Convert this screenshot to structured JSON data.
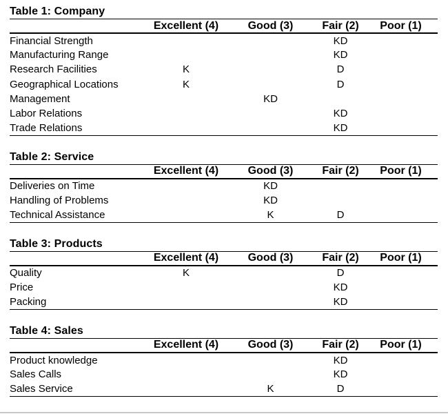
{
  "columns": [
    "Excellent (4)",
    "Good (3)",
    "Fair (2)",
    "Poor (1)"
  ],
  "tables": [
    {
      "title": "Table 1: Company",
      "rows": [
        {
          "label": "Financial Strength",
          "cells": [
            "",
            "",
            "KD",
            ""
          ]
        },
        {
          "label": "Manufacturing Range",
          "cells": [
            "",
            "",
            "KD",
            ""
          ]
        },
        {
          "label": "Research Facilities",
          "cells": [
            "K",
            "",
            "D",
            ""
          ]
        },
        {
          "label": "Geographical Locations",
          "cells": [
            "K",
            "",
            "D",
            ""
          ]
        },
        {
          "label": "Management",
          "cells": [
            "",
            "KD",
            "",
            ""
          ]
        },
        {
          "label": "Labor Relations",
          "cells": [
            "",
            "",
            "KD",
            ""
          ]
        },
        {
          "label": "Trade Relations",
          "cells": [
            "",
            "",
            "KD",
            ""
          ]
        }
      ]
    },
    {
      "title": "Table 2: Service",
      "rows": [
        {
          "label": "Deliveries on Time",
          "cells": [
            "",
            "KD",
            "",
            ""
          ]
        },
        {
          "label": "Handling of Problems",
          "cells": [
            "",
            "KD",
            "",
            ""
          ]
        },
        {
          "label": "Technical Assistance",
          "cells": [
            "",
            "K",
            "D",
            ""
          ]
        }
      ]
    },
    {
      "title": "Table 3: Products",
      "rows": [
        {
          "label": "Quality",
          "cells": [
            "K",
            "",
            "D",
            ""
          ]
        },
        {
          "label": "Price",
          "cells": [
            "",
            "",
            "KD",
            ""
          ]
        },
        {
          "label": "Packing",
          "cells": [
            "",
            "",
            "KD",
            ""
          ]
        }
      ]
    },
    {
      "title": "Table 4: Sales",
      "rows": [
        {
          "label": "Product knowledge",
          "cells": [
            "",
            "",
            "KD",
            ""
          ]
        },
        {
          "label": "Sales Calls",
          "cells": [
            "",
            "",
            "KD",
            ""
          ]
        },
        {
          "label": "Sales Service",
          "cells": [
            "",
            "K",
            "D",
            ""
          ]
        }
      ]
    }
  ]
}
